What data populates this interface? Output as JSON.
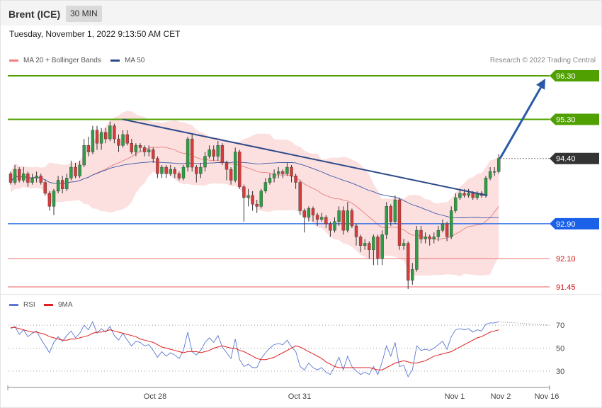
{
  "header": {
    "title": "Brent (ICE)",
    "timeframe": "30 MIN",
    "timestamp": "Tuesday, November 1, 2022 9:13:50 AM CET",
    "credit": "Research © 2022 Trading Central"
  },
  "legend": {
    "ma20": "MA 20 + Bollinger Bands",
    "ma50": "MA 50",
    "rsi": "RSI",
    "rsi_ma": "9MA"
  },
  "colors": {
    "green_level": "#4fa000",
    "blue_level": "#1a60e8",
    "red_level": "#f08080",
    "current_price": "#333333",
    "trendline": "#2c4a8a",
    "arrow": "#2a5aa5",
    "bull_candle": "#2e9e44",
    "bear_candle": "#d63c3c",
    "bollinger_fill": "#fbd9d9",
    "ma20": "#e88080",
    "ma50": "#3b5aa8",
    "rsi": "#5a78d0",
    "rsi_ma": "#e02020"
  },
  "chart_data": [
    {
      "type": "candlestick",
      "title": "Brent (ICE)",
      "timeframe": "30 MIN",
      "x_labels": [
        "Oct 28",
        "Oct 31",
        "Nov 1",
        "Nov 2",
        "Nov 16"
      ],
      "y_range": [
        91.3,
        96.4
      ],
      "levels": [
        {
          "label": "96.30",
          "value": 96.3,
          "kind": "resistance"
        },
        {
          "label": "95.30",
          "value": 95.3,
          "kind": "resistance"
        },
        {
          "label": "94.40",
          "value": 94.4,
          "kind": "current"
        },
        {
          "label": "92.90",
          "value": 92.9,
          "kind": "pivot"
        },
        {
          "label": "92.10",
          "value": 92.1,
          "kind": "support"
        },
        {
          "label": "91.45",
          "value": 91.45,
          "kind": "support"
        }
      ],
      "candles": [
        [
          94.05,
          93.85,
          94.1,
          93.8
        ],
        [
          93.85,
          94.15,
          94.25,
          93.8
        ],
        [
          94.15,
          93.9,
          94.2,
          93.85
        ],
        [
          93.9,
          94.05,
          94.2,
          93.85
        ],
        [
          94.05,
          93.85,
          94.1,
          93.75
        ],
        [
          93.85,
          93.95,
          94.05,
          93.8
        ],
        [
          93.95,
          94.0,
          94.1,
          93.85
        ],
        [
          94.0,
          93.85,
          94.05,
          93.8
        ],
        [
          93.85,
          93.6,
          93.9,
          93.55
        ],
        [
          93.6,
          93.3,
          93.65,
          93.2
        ],
        [
          93.3,
          93.65,
          93.7,
          93.1
        ],
        [
          93.65,
          93.9,
          94.0,
          93.6
        ],
        [
          93.9,
          93.7,
          94.0,
          93.6
        ],
        [
          93.7,
          93.95,
          94.05,
          93.65
        ],
        [
          93.95,
          94.2,
          94.35,
          93.9
        ],
        [
          94.2,
          94.0,
          94.3,
          93.95
        ],
        [
          94.0,
          94.25,
          94.35,
          93.95
        ],
        [
          94.25,
          94.7,
          94.85,
          94.2
        ],
        [
          94.7,
          94.55,
          94.9,
          94.45
        ],
        [
          94.55,
          95.05,
          95.15,
          94.5
        ],
        [
          95.05,
          94.75,
          95.15,
          94.6
        ],
        [
          94.75,
          95.0,
          95.1,
          94.6
        ],
        [
          95.0,
          94.85,
          95.1,
          94.75
        ],
        [
          94.85,
          95.15,
          95.25,
          94.8
        ],
        [
          95.15,
          94.85,
          95.2,
          94.75
        ],
        [
          94.85,
          94.7,
          94.95,
          94.55
        ],
        [
          94.7,
          94.95,
          95.05,
          94.65
        ],
        [
          94.95,
          94.75,
          95.05,
          94.7
        ],
        [
          94.75,
          94.55,
          94.85,
          94.5
        ],
        [
          94.55,
          94.7,
          94.75,
          94.45
        ],
        [
          94.7,
          94.65,
          94.75,
          94.55
        ],
        [
          94.65,
          94.55,
          94.7,
          94.45
        ],
        [
          94.55,
          94.6,
          94.7,
          94.45
        ],
        [
          94.6,
          94.4,
          94.65,
          94.3
        ],
        [
          94.4,
          94.05,
          94.45,
          93.95
        ],
        [
          94.05,
          94.2,
          94.25,
          93.95
        ],
        [
          94.2,
          94.05,
          94.25,
          93.95
        ],
        [
          94.05,
          94.15,
          94.25,
          94.0
        ],
        [
          94.15,
          94.05,
          94.2,
          93.95
        ],
        [
          94.05,
          93.95,
          94.1,
          93.9
        ],
        [
          93.95,
          94.2,
          94.25,
          93.9
        ],
        [
          94.2,
          94.85,
          94.9,
          94.1
        ],
        [
          94.85,
          94.2,
          94.95,
          94.1
        ],
        [
          94.2,
          94.05,
          94.25,
          93.85
        ],
        [
          94.05,
          94.2,
          94.3,
          93.95
        ],
        [
          94.2,
          94.45,
          94.55,
          94.1
        ],
        [
          94.45,
          94.6,
          94.7,
          94.4
        ],
        [
          94.6,
          94.45,
          94.7,
          94.35
        ],
        [
          94.45,
          94.7,
          94.8,
          94.35
        ],
        [
          94.7,
          94.3,
          94.75,
          94.25
        ],
        [
          94.3,
          94.15,
          94.35,
          93.9
        ],
        [
          94.15,
          93.9,
          94.2,
          93.8
        ],
        [
          93.9,
          94.55,
          94.65,
          93.85
        ],
        [
          94.55,
          93.75,
          94.6,
          93.7
        ],
        [
          93.75,
          93.5,
          93.8,
          92.95
        ],
        [
          93.5,
          93.55,
          93.7,
          93.3
        ],
        [
          93.55,
          93.35,
          93.65,
          93.2
        ],
        [
          93.35,
          93.3,
          93.45,
          93.15
        ],
        [
          93.3,
          93.65,
          93.7,
          93.25
        ],
        [
          93.65,
          93.85,
          93.95,
          93.6
        ],
        [
          93.85,
          93.95,
          94.05,
          93.8
        ],
        [
          93.95,
          94.05,
          94.15,
          93.85
        ],
        [
          94.05,
          94.1,
          94.2,
          93.95
        ],
        [
          94.1,
          94.05,
          94.15,
          93.95
        ],
        [
          94.05,
          94.2,
          94.3,
          94.0
        ],
        [
          94.2,
          94.0,
          94.25,
          93.85
        ],
        [
          94.0,
          93.85,
          94.05,
          93.7
        ],
        [
          93.85,
          93.2,
          93.9,
          93.1
        ],
        [
          93.2,
          93.05,
          93.25,
          92.7
        ],
        [
          93.05,
          93.25,
          93.3,
          92.95
        ],
        [
          93.25,
          93.1,
          93.3,
          92.95
        ],
        [
          93.1,
          93.0,
          93.15,
          92.85
        ],
        [
          93.0,
          93.05,
          93.15,
          92.95
        ],
        [
          93.05,
          92.9,
          93.1,
          92.8
        ],
        [
          92.9,
          92.75,
          92.95,
          92.6
        ],
        [
          92.75,
          92.95,
          93.05,
          92.7
        ],
        [
          92.95,
          93.2,
          93.3,
          92.85
        ],
        [
          93.2,
          92.75,
          93.3,
          92.65
        ],
        [
          92.75,
          93.2,
          93.4,
          92.7
        ],
        [
          93.2,
          92.85,
          93.25,
          92.8
        ],
        [
          92.85,
          92.6,
          92.9,
          92.4
        ],
        [
          92.6,
          92.4,
          92.65,
          92.25
        ],
        [
          92.4,
          92.45,
          92.55,
          92.3
        ],
        [
          92.45,
          92.3,
          92.5,
          92.1
        ],
        [
          92.3,
          92.6,
          92.65,
          91.95
        ],
        [
          92.6,
          92.1,
          92.65,
          91.95
        ],
        [
          92.1,
          92.65,
          92.75,
          91.95
        ],
        [
          92.65,
          93.3,
          93.4,
          92.55
        ],
        [
          93.3,
          92.95,
          93.35,
          92.85
        ],
        [
          92.95,
          93.45,
          93.55,
          92.9
        ],
        [
          93.45,
          92.4,
          93.5,
          92.3
        ],
        [
          92.4,
          92.45,
          92.55,
          92.3
        ],
        [
          92.45,
          91.6,
          92.5,
          91.4
        ],
        [
          91.6,
          91.85,
          92.0,
          91.5
        ],
        [
          91.85,
          92.75,
          92.85,
          91.8
        ],
        [
          92.75,
          92.55,
          92.85,
          92.45
        ],
        [
          92.55,
          92.6,
          92.7,
          92.45
        ],
        [
          92.6,
          92.55,
          92.65,
          92.4
        ],
        [
          92.55,
          92.6,
          92.7,
          92.45
        ],
        [
          92.6,
          92.75,
          92.85,
          92.5
        ],
        [
          92.75,
          92.9,
          93.0,
          92.7
        ],
        [
          92.9,
          92.6,
          92.95,
          92.5
        ],
        [
          92.6,
          93.2,
          93.3,
          92.55
        ],
        [
          93.2,
          93.5,
          93.6,
          93.15
        ],
        [
          93.5,
          93.6,
          93.7,
          93.45
        ],
        [
          93.6,
          93.55,
          93.7,
          93.5
        ],
        [
          93.55,
          93.6,
          93.7,
          93.5
        ],
        [
          93.6,
          93.5,
          93.65,
          93.45
        ],
        [
          93.5,
          93.6,
          93.65,
          93.45
        ],
        [
          93.6,
          93.55,
          93.65,
          93.5
        ],
        [
          93.55,
          93.95,
          94.0,
          93.5
        ],
        [
          93.95,
          94.1,
          94.2,
          93.9
        ],
        [
          94.1,
          94.1,
          94.2,
          94.0
        ],
        [
          94.1,
          94.4,
          94.5,
          94.05
        ]
      ],
      "resistance_trendline": {
        "from_value": 95.3,
        "to_value": 93.55
      },
      "projection_arrow": {
        "from_value": 94.4,
        "to_value": 96.3
      }
    },
    {
      "type": "line",
      "title": "RSI",
      "y_ticks": [
        70,
        50,
        30
      ],
      "y_range": [
        20,
        80
      ],
      "overbought_projection": 70,
      "series": [
        {
          "name": "RSI",
          "values": [
            67,
            69,
            62,
            66,
            60,
            63,
            65,
            58,
            52,
            46,
            55,
            60,
            56,
            61,
            65,
            59,
            63,
            70,
            66,
            73,
            63,
            67,
            64,
            69,
            61,
            57,
            63,
            57,
            52,
            56,
            55,
            52,
            53,
            48,
            42,
            47,
            43,
            46,
            44,
            41,
            48,
            64,
            47,
            44,
            48,
            55,
            59,
            55,
            61,
            51,
            46,
            41,
            58,
            40,
            34,
            36,
            33,
            33,
            41,
            46,
            50,
            53,
            54,
            53,
            57,
            51,
            47,
            34,
            31,
            37,
            33,
            31,
            33,
            29,
            27,
            34,
            42,
            31,
            43,
            34,
            30,
            27,
            29,
            27,
            34,
            27,
            38,
            52,
            43,
            55,
            34,
            35,
            25,
            31,
            52,
            48,
            49,
            48,
            50,
            53,
            56,
            49,
            60,
            66,
            67,
            66,
            67,
            64,
            66,
            65,
            71,
            72,
            72,
            73
          ]
        },
        {
          "name": "9MA",
          "values": [
            68,
            68,
            67,
            66,
            65,
            64,
            64,
            63,
            62,
            60,
            59,
            58,
            57,
            57,
            58,
            58,
            59,
            60,
            61,
            63,
            64,
            64,
            65,
            66,
            65,
            64,
            63,
            62,
            61,
            60,
            58,
            57,
            56,
            55,
            53,
            51,
            50,
            49,
            48,
            47,
            46,
            47,
            47,
            47,
            46,
            47,
            48,
            50,
            51,
            52,
            51,
            50,
            50,
            48,
            47,
            45,
            43,
            41,
            40,
            40,
            41,
            42,
            44,
            46,
            48,
            50,
            52,
            51,
            49,
            47,
            45,
            43,
            41,
            38,
            36,
            34,
            33,
            33,
            33,
            33,
            33,
            33,
            33,
            33,
            32,
            31,
            31,
            33,
            35,
            37,
            38,
            39,
            38,
            37,
            37,
            38,
            39,
            41,
            43,
            44,
            45,
            46,
            47,
            49,
            51,
            53,
            55,
            57,
            59,
            60,
            62,
            64,
            65,
            66
          ]
        }
      ]
    }
  ]
}
